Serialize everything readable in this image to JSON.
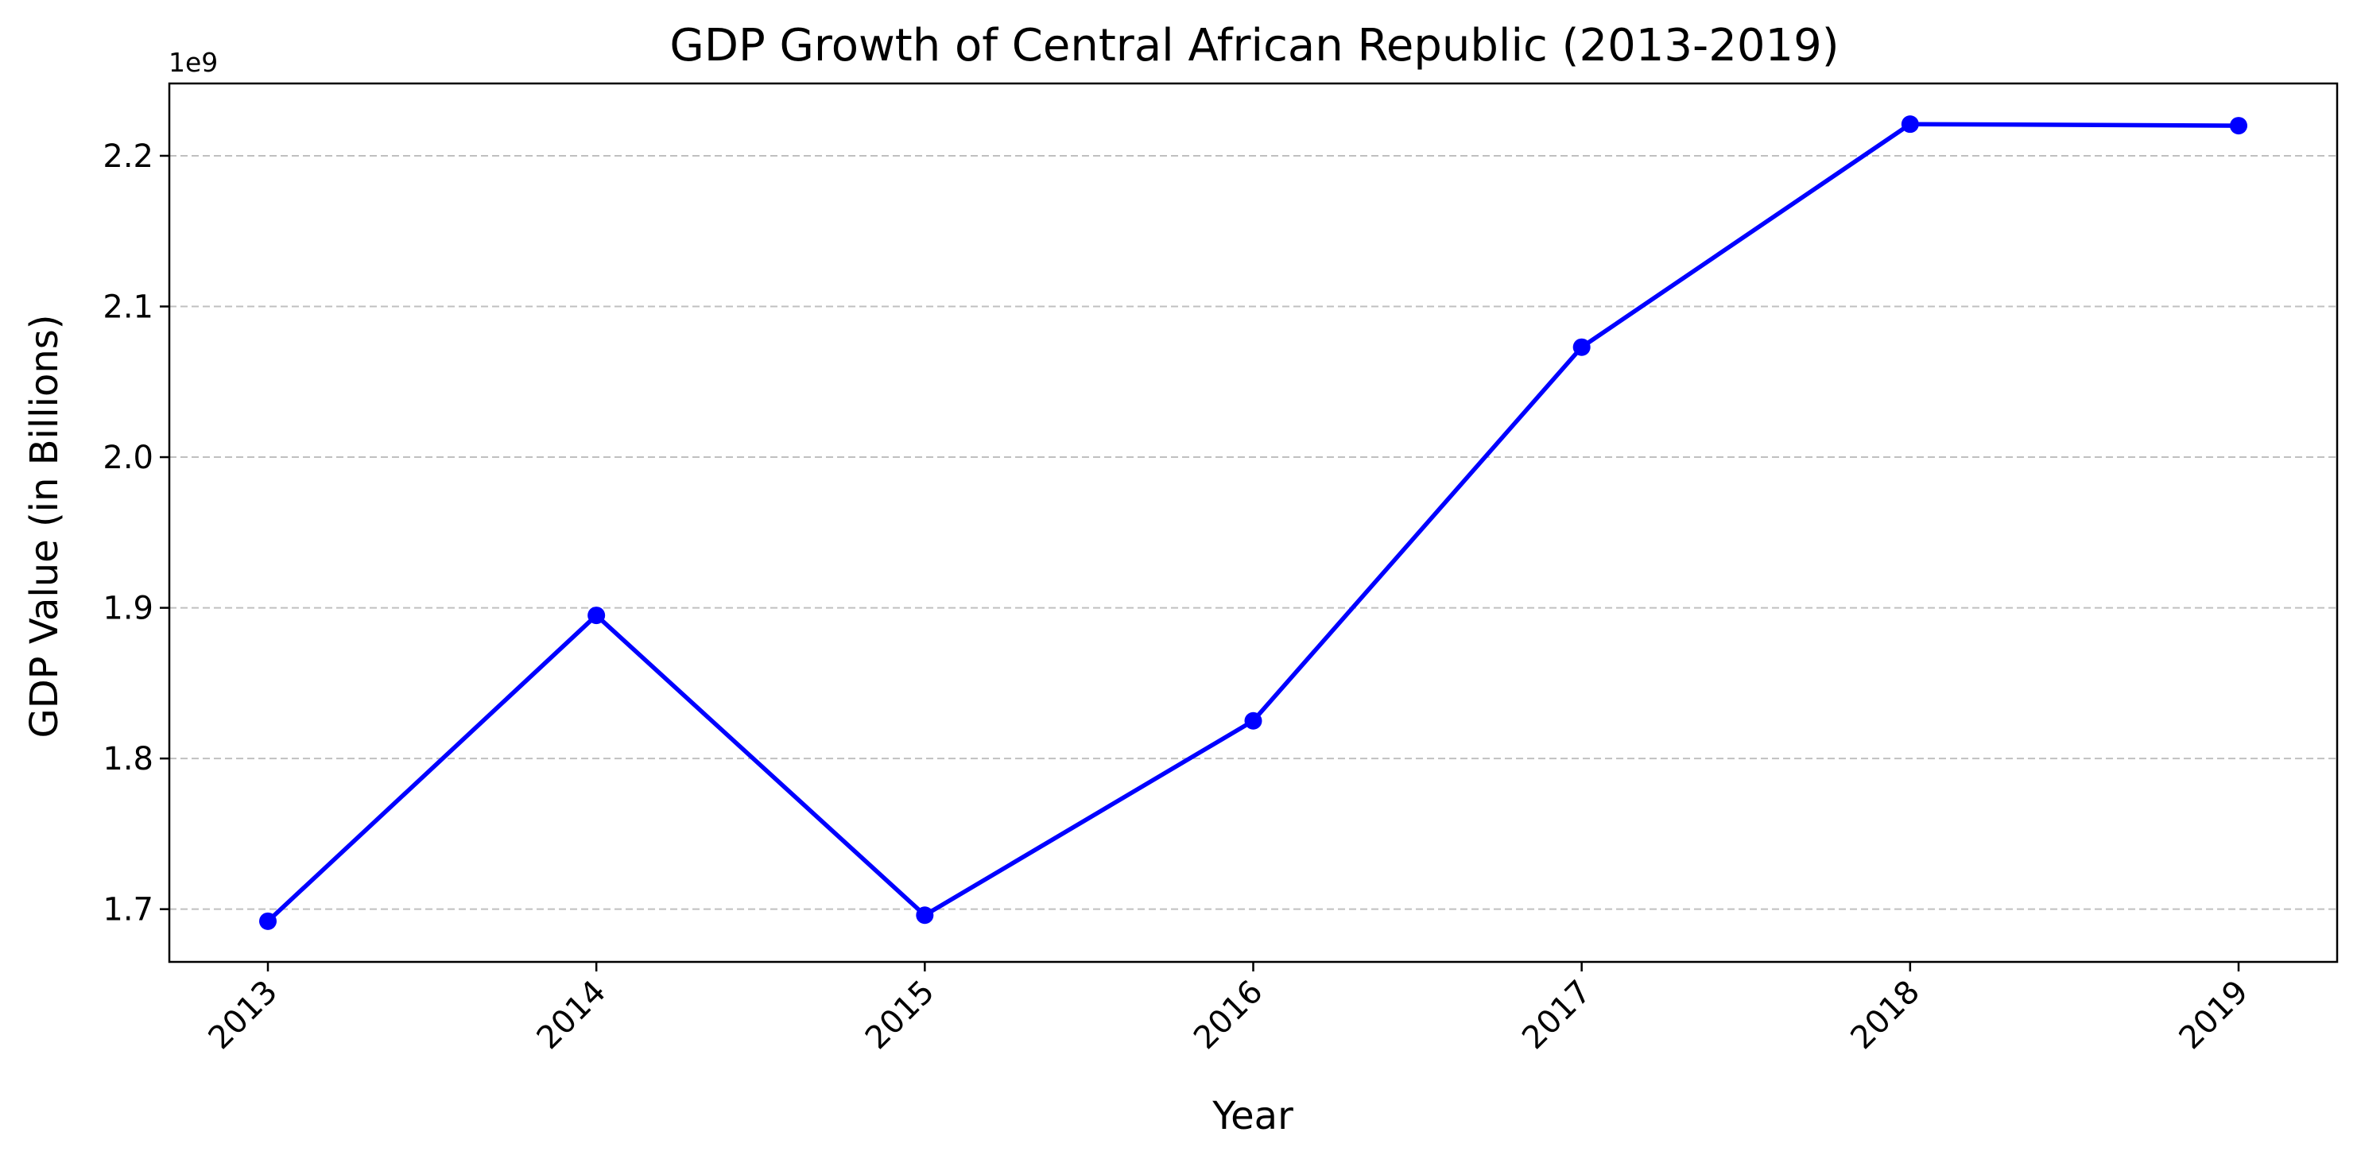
{
  "chart_data": {
    "type": "line",
    "title": "GDP Growth of Central African Republic (2013-2019)",
    "xlabel": "Year",
    "ylabel": "GDP Value (in Billions)",
    "y_offset_label": "1e9",
    "categories": [
      "2013",
      "2014",
      "2015",
      "2016",
      "2017",
      "2018",
      "2019"
    ],
    "series": [
      {
        "values": [
          1692000000,
          1895000000,
          1696000000,
          1825000000,
          2073000000,
          2221000000,
          2220000000
        ]
      }
    ],
    "yticks": [
      1.7,
      1.8,
      1.9,
      2.0,
      2.1,
      2.2
    ],
    "ytick_labels": [
      "1.7",
      "1.8",
      "1.9",
      "2.0",
      "2.1",
      "2.2"
    ],
    "ylim": [
      1665000000,
      2248000000
    ],
    "y_scale": 1000000000,
    "line_color": "#0000ff",
    "grid_color": "#c0c0c0",
    "grid": "horizontal dashed",
    "x_tick_rotation": 45
  }
}
